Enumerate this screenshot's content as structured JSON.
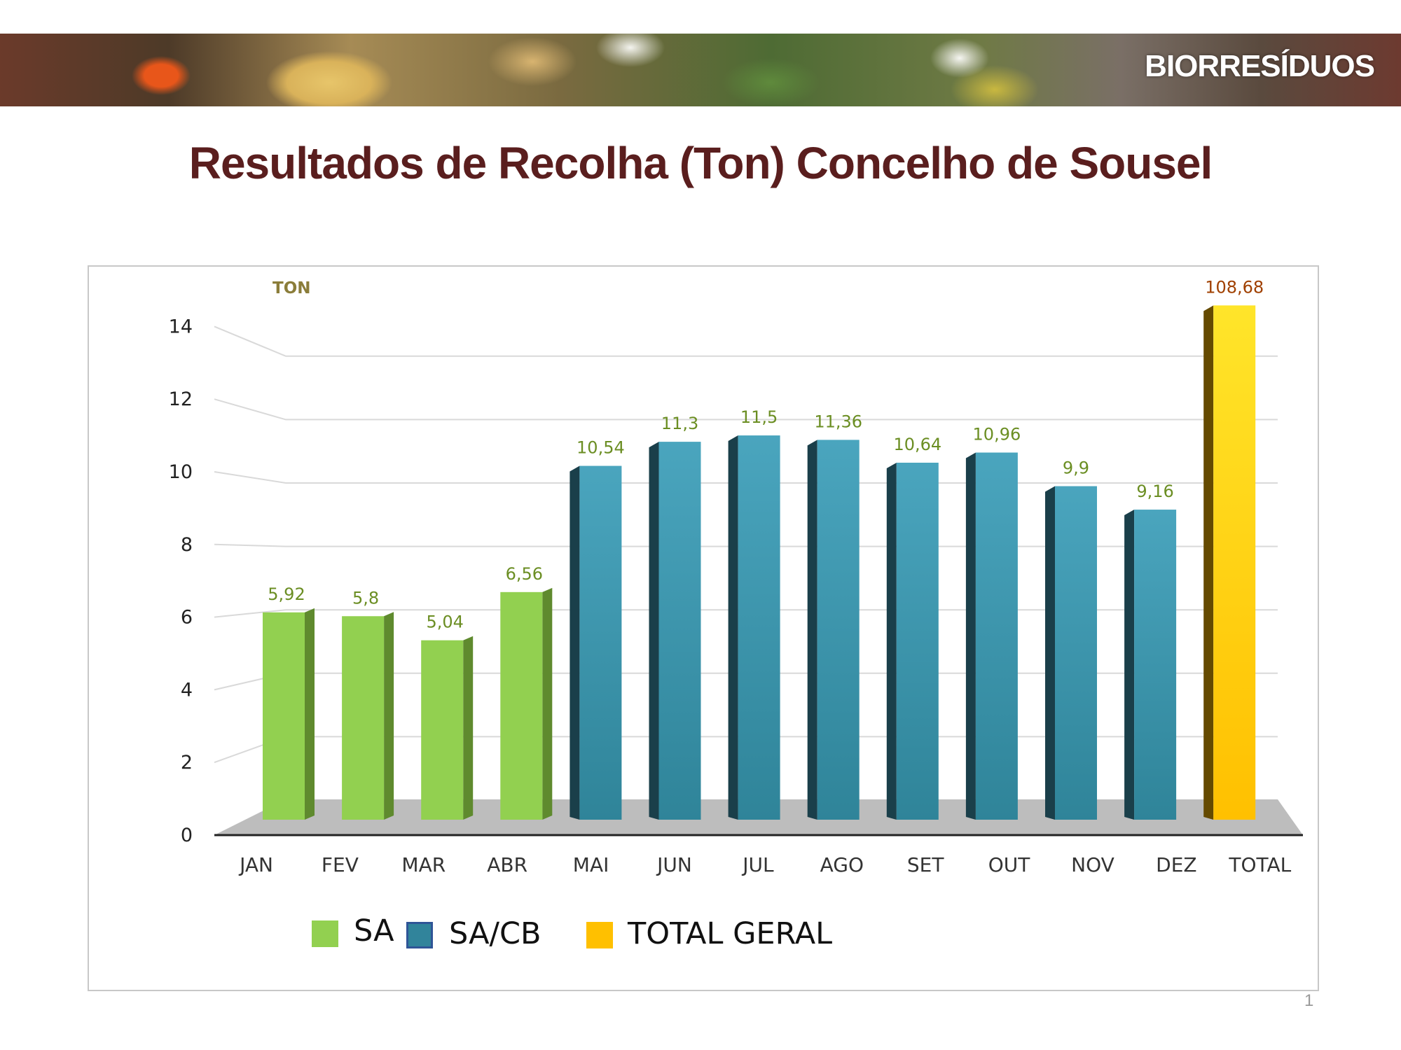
{
  "banner": {
    "label": "BIORRESÍDUOS"
  },
  "title": "Resultados de Recolha (Ton) Concelho de Sousel",
  "page_number": "1",
  "chart_data": {
    "type": "bar",
    "title": "Resultados de Recolha (Ton) Concelho de Sousel",
    "ylabel": "TON",
    "xlabel": "",
    "ylim": [
      0,
      14
    ],
    "yticks": [
      "0",
      "2",
      "4",
      "6",
      "8",
      "10",
      "12",
      "14"
    ],
    "categories": [
      "JAN",
      "FEV",
      "MAR",
      "ABR",
      "MAI",
      "JUN",
      "JUL",
      "AGO",
      "SET",
      "OUT",
      "NOV",
      "DEZ",
      "TOTAL"
    ],
    "values": [
      5.92,
      5.8,
      5.04,
      6.56,
      10.54,
      11.3,
      11.5,
      11.36,
      10.64,
      10.96,
      9.9,
      9.16,
      108.68
    ],
    "value_labels": [
      "5,92",
      "5,8",
      "5,04",
      "6,56",
      "10,54",
      "11,3",
      "11,5",
      "11,36",
      "10,64",
      "10,96",
      "9,9",
      "9,16",
      "108,68"
    ],
    "series_of_bar": [
      "SA",
      "SA",
      "SA",
      "SA",
      "SA/CB",
      "SA/CB",
      "SA/CB",
      "SA/CB",
      "SA/CB",
      "SA/CB",
      "SA/CB",
      "SA/CB",
      "TOTAL GERAL"
    ],
    "legend": [
      {
        "name": "SA",
        "color": "#92d050"
      },
      {
        "name": "SA/CB",
        "color": "#31849b"
      },
      {
        "name": "TOTAL GERAL",
        "color": "#ffc000"
      }
    ],
    "grid": true,
    "legend_position": "bottom"
  }
}
